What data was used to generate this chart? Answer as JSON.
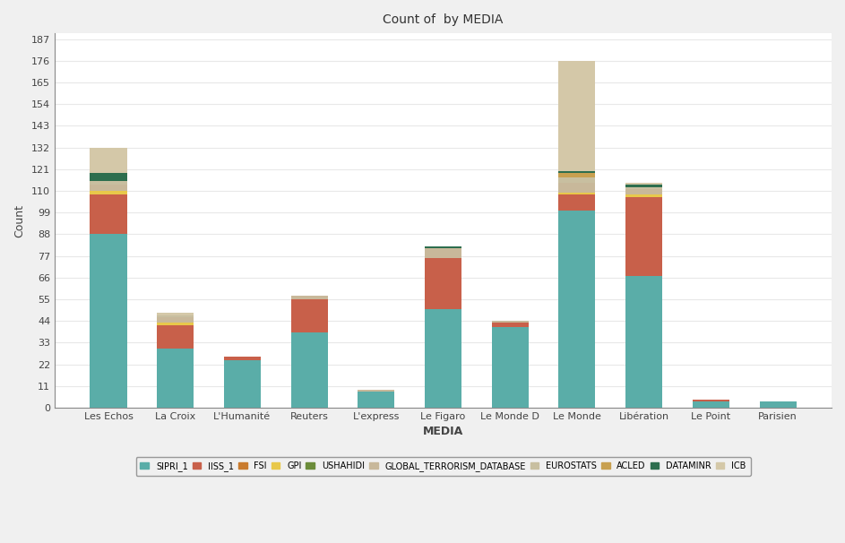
{
  "title": "Count of  by MEDIA",
  "xlabel": "MEDIA",
  "ylabel": "Count",
  "media": [
    "Les Echos",
    "La Croix",
    "L'Humanité",
    "Reuters",
    "L'express",
    "Le Figaro",
    "Le Monde D",
    "Le Monde",
    "Libération",
    "Le Point",
    "Parisien"
  ],
  "databases": [
    "SIPRI_1",
    "IISS_1",
    "FSI",
    "GPI",
    "USHAHIDI",
    "GLOBAL_TERRORISM_DATABASE",
    "EUROSTATS",
    "ACLED",
    "DATAMINR",
    "ICB"
  ],
  "colors": [
    "#5aada8",
    "#c8604a",
    "#c97b2e",
    "#e8c84a",
    "#6b8c3a",
    "#c8b89a",
    "#c8bfa0",
    "#c8a050",
    "#2d6e4e",
    "#d4c8a8"
  ],
  "data": {
    "SIPRI_1": [
      88,
      30,
      24,
      38,
      8,
      50,
      41,
      100,
      67,
      3,
      3
    ],
    "IISS_1": [
      20,
      12,
      2,
      17,
      0,
      26,
      2,
      8,
      40,
      1,
      0
    ],
    "FSI": [
      0,
      0,
      0,
      0,
      0,
      0,
      0,
      0,
      0,
      0,
      0
    ],
    "GPI": [
      2,
      1,
      0,
      0,
      0,
      0,
      0,
      1,
      1,
      0,
      0
    ],
    "USHAHIDI": [
      0,
      0,
      0,
      0,
      0,
      0,
      0,
      0,
      0,
      0,
      0
    ],
    "GLOBAL_TERRORISM_DATABASE": [
      3,
      3,
      0,
      2,
      1,
      5,
      1,
      5,
      3,
      0,
      0
    ],
    "EUROSTATS": [
      2,
      1,
      0,
      0,
      0,
      0,
      0,
      3,
      1,
      0,
      0
    ],
    "ACLED": [
      0,
      0,
      0,
      0,
      0,
      0,
      0,
      2,
      0,
      0,
      0
    ],
    "DATAMINR": [
      4,
      0,
      0,
      0,
      0,
      1,
      0,
      1,
      1,
      0,
      0
    ],
    "ICB": [
      13,
      1,
      0,
      0,
      0,
      0,
      0,
      56,
      1,
      0,
      0
    ]
  },
  "yticks": [
    0,
    11,
    22,
    33,
    44,
    55,
    66,
    77,
    88,
    99,
    110,
    121,
    132,
    143,
    154,
    165,
    176,
    187
  ],
  "ylim": [
    0,
    190
  ],
  "background_color": "#f0f0f0",
  "plot_bg_color": "#ffffff",
  "grid_color": "#e8e8e8",
  "bar_width": 0.55
}
